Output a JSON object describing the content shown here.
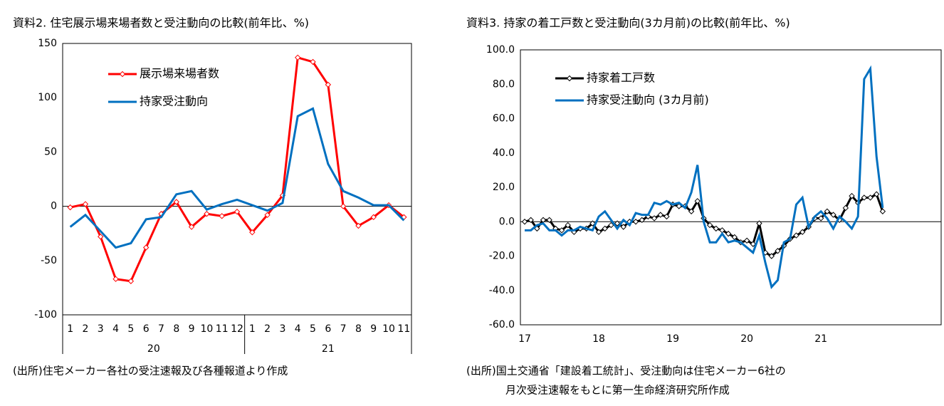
{
  "chart_data": [
    {
      "type": "line",
      "title": "資料2. 住宅展示場来場者数と受注動向の比較(前年比、%)",
      "categories": [
        "1",
        "2",
        "3",
        "4",
        "5",
        "6",
        "7",
        "8",
        "9",
        "10",
        "11",
        "12",
        "1",
        "2",
        "3",
        "4",
        "5",
        "6",
        "7",
        "8",
        "9",
        "10",
        "11"
      ],
      "category_groups": [
        {
          "label": "20",
          "span": 12
        },
        {
          "label": "21",
          "span": 11
        }
      ],
      "ylim": [
        -100,
        150
      ],
      "yticks": [
        -100,
        -50,
        0,
        50,
        100,
        150
      ],
      "grid": false,
      "zero_line": true,
      "series": [
        {
          "name": "展示場来場者数",
          "color": "#ff0000",
          "marker": "diamond",
          "values": [
            -1,
            2,
            -28,
            -67,
            -69,
            -38,
            -7,
            4,
            -19,
            -7,
            -9,
            -5,
            -24,
            -8,
            10,
            137,
            133,
            112,
            0,
            -18,
            -10,
            1,
            -10
          ]
        },
        {
          "name": "持家受注動向",
          "color": "#0070c0",
          "values": [
            -19,
            -8,
            -23,
            -38,
            -34,
            -12,
            -10,
            11,
            14,
            -3,
            2,
            6,
            1,
            -4,
            3,
            83,
            90,
            39,
            14,
            8,
            1,
            1,
            -13
          ]
        }
      ],
      "source": [
        "(出所)住宅メーカー各社の受注速報及び各種報道より作成"
      ]
    },
    {
      "type": "line",
      "title": "資料3. 持家の着工戸数と受注動向(3カ月前)の比較(前年比、%)",
      "categories": [
        "17",
        null,
        null,
        null,
        null,
        null,
        null,
        null,
        null,
        null,
        null,
        null,
        "18",
        null,
        null,
        null,
        null,
        null,
        null,
        null,
        null,
        null,
        null,
        null,
        "19",
        null,
        null,
        null,
        null,
        null,
        null,
        null,
        null,
        null,
        null,
        null,
        "20",
        null,
        null,
        null,
        null,
        null,
        null,
        null,
        null,
        null,
        null,
        null,
        "21",
        null,
        null,
        null,
        null,
        null,
        null,
        null,
        null,
        null,
        null
      ],
      "ylim": [
        -60,
        100
      ],
      "yticks": [
        {
          "value": -60,
          "label": "-60.0"
        },
        {
          "value": -40,
          "label": "-40.0"
        },
        {
          "value": -20,
          "label": "-20.0"
        },
        {
          "value": 0,
          "label": "0.0"
        },
        {
          "value": 20,
          "label": "20.0"
        },
        {
          "value": 40,
          "label": "40.0"
        },
        {
          "value": 60,
          "label": "60.0"
        },
        {
          "value": 80,
          "label": "80.0"
        },
        {
          "value": 100,
          "label": "100.0"
        }
      ],
      "grid": false,
      "zero_line": true,
      "series": [
        {
          "name": "持家着工戸数",
          "color": "#000000",
          "marker": "diamond",
          "values": [
            0,
            1,
            -4,
            1,
            1,
            -4,
            -5,
            -2,
            -6,
            -4,
            -4,
            -1,
            -6,
            -4,
            -2,
            -1,
            -3,
            0,
            0,
            1,
            3,
            2,
            4,
            3,
            10,
            9,
            9,
            6,
            12,
            2,
            -2,
            -4,
            -5,
            -7,
            -9,
            -12,
            -11,
            -13,
            -1,
            -18,
            -20,
            -17,
            -14,
            -10,
            -8,
            -6,
            -3,
            2,
            2,
            6,
            4,
            1,
            8,
            15,
            11,
            14,
            14,
            16,
            6
          ]
        },
        {
          "name": "持家受注動向 (3カ月前)",
          "color": "#0070c0",
          "values": [
            -5,
            -5,
            -2,
            -1,
            -5,
            -5,
            -8,
            -5,
            -5,
            -3,
            -4,
            -5,
            3,
            6,
            1,
            -4,
            1,
            -2,
            5,
            4,
            4,
            11,
            10,
            12,
            10,
            11,
            8,
            17,
            33,
            0,
            -12,
            -12,
            -7,
            -12,
            -11,
            -12,
            -15,
            -18,
            -8,
            -24,
            -38,
            -34,
            -12,
            -10,
            10,
            14,
            -3,
            3,
            6,
            2,
            -4,
            3,
            0,
            -4,
            3,
            83,
            89,
            38,
            8
          ]
        }
      ],
      "source": [
        "(出所)国土交通省「建設着工統計」、受注動向は住宅メーカー6社の",
        "月次受注速報をもとに第一生命経済研究所作成"
      ]
    }
  ]
}
